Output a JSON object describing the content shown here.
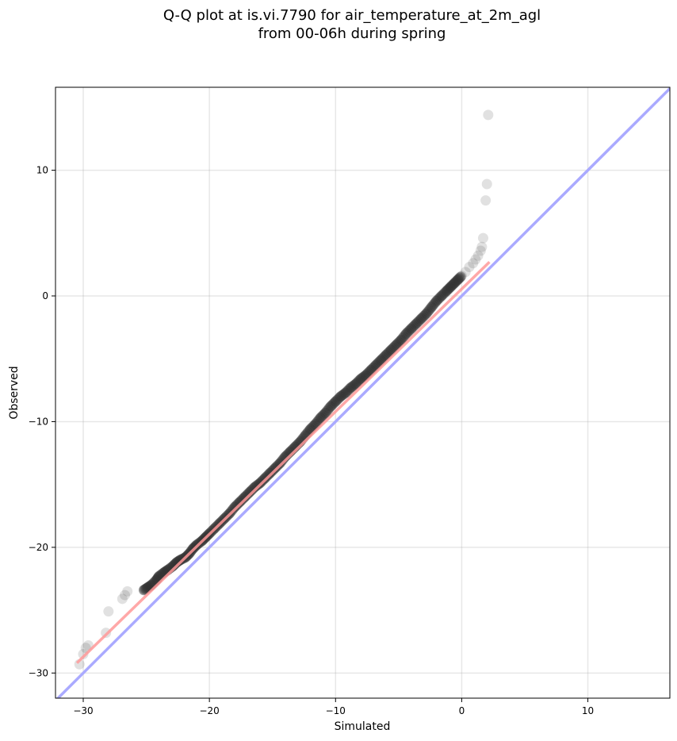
{
  "chart_data": {
    "type": "scatter",
    "title_lines": [
      "Q-Q plot at is.vi.7790 for air_temperature_at_2m_agl",
      "from 00-06h during spring"
    ],
    "xlabel": "Simulated",
    "ylabel": "Observed",
    "xlim": [
      -32.2,
      16.5
    ],
    "ylim": [
      -32.0,
      16.6
    ],
    "x_ticks": [
      -30,
      -20,
      -10,
      0,
      10
    ],
    "y_ticks": [
      -30,
      -20,
      -10,
      0,
      10
    ],
    "x_tick_labels": [
      "−30",
      "−20",
      "−10",
      "0",
      "10"
    ],
    "y_tick_labels": [
      "−30",
      "−20",
      "−10",
      "0",
      "10"
    ],
    "grid": true,
    "colors": {
      "points": "#333333",
      "identity_line": "#aaaaff",
      "fit_line": "#ff9999"
    },
    "points": {
      "x": [
        -30.3,
        -30.0,
        -29.8,
        -29.6,
        -28.2,
        -28.0,
        -26.9,
        -26.7,
        -26.5,
        -25.2,
        -24.9,
        -24.6,
        -24.2,
        -24.0,
        -23.6,
        -23.3,
        -22.9,
        -22.6,
        -22.3,
        -21.9,
        -21.6,
        -21.3,
        -21.0,
        -20.6,
        -20.3,
        -20.0,
        -19.6,
        -19.2,
        -18.8,
        -18.4,
        -18.0,
        -17.6,
        -17.2,
        -16.8,
        -16.4,
        -16.0,
        -15.6,
        -15.2,
        -14.8,
        -14.4,
        -14.0,
        -13.6,
        -13.2,
        -12.8,
        -12.4,
        -12.0,
        -11.6,
        -11.2,
        -10.8,
        -10.4,
        -10.0,
        -9.6,
        -9.2,
        -8.8,
        -8.4,
        -8.0,
        -7.6,
        -7.2,
        -6.8,
        -6.4,
        -6.0,
        -5.6,
        -5.2,
        -4.8,
        -4.4,
        -4.0,
        -3.6,
        -3.2,
        -2.8,
        -2.4,
        -2.0,
        -1.6,
        -1.2,
        -0.9,
        -0.6,
        -0.3,
        0.0,
        0.3,
        0.6,
        0.9,
        1.1,
        1.3,
        1.5,
        1.6,
        1.7,
        1.9,
        2.0,
        2.1
      ],
      "y": [
        -29.3,
        -28.5,
        -28.0,
        -27.8,
        -26.8,
        -25.1,
        -24.1,
        -23.8,
        -23.5,
        -23.4,
        -23.2,
        -23.0,
        -22.6,
        -22.3,
        -22.0,
        -21.8,
        -21.5,
        -21.2,
        -21.0,
        -20.8,
        -20.5,
        -20.1,
        -19.8,
        -19.5,
        -19.2,
        -18.9,
        -18.5,
        -18.1,
        -17.7,
        -17.3,
        -16.8,
        -16.4,
        -16.0,
        -15.6,
        -15.2,
        -14.9,
        -14.5,
        -14.1,
        -13.7,
        -13.3,
        -12.8,
        -12.4,
        -12.0,
        -11.6,
        -11.1,
        -10.6,
        -10.2,
        -9.7,
        -9.3,
        -8.8,
        -8.4,
        -8.0,
        -7.7,
        -7.3,
        -7.0,
        -6.6,
        -6.3,
        -5.9,
        -5.5,
        -5.1,
        -4.7,
        -4.3,
        -3.9,
        -3.5,
        -3.0,
        -2.6,
        -2.2,
        -1.8,
        -1.4,
        -0.9,
        -0.4,
        0.0,
        0.4,
        0.7,
        1.0,
        1.3,
        1.6,
        1.9,
        2.3,
        2.6,
        2.9,
        3.2,
        3.6,
        3.9,
        4.6,
        7.6,
        8.9,
        14.4
      ]
    },
    "identity_line": {
      "x": [
        -32.2,
        16.5
      ],
      "y": [
        -32.2,
        16.5
      ]
    },
    "fit_line": {
      "x": [
        -30.5,
        2.2
      ],
      "y": [
        -29.2,
        2.7
      ]
    }
  }
}
